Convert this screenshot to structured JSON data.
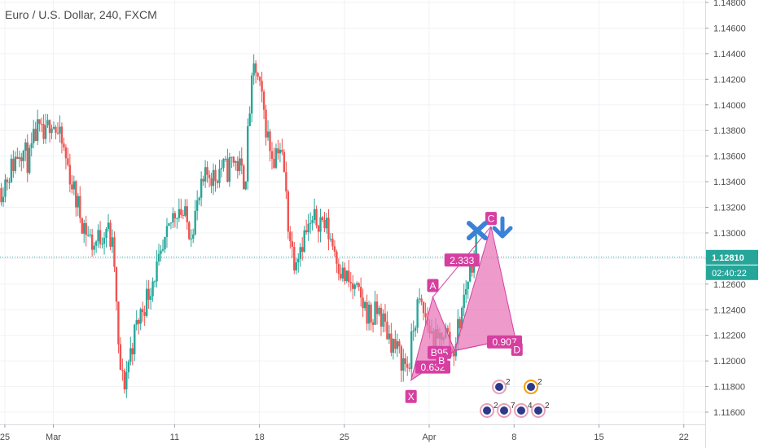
{
  "chart_data": {
    "type": "candlestick",
    "symbol_title": "Euro / U.S. Dollar, 240, FXCM",
    "ylim": [
      1.115,
      1.148
    ],
    "y_ticks": [
      "1.11600",
      "1.11800",
      "1.12000",
      "1.12200",
      "1.12400",
      "1.12600",
      "1.12800",
      "1.13000",
      "1.13200",
      "1.13400",
      "1.13600",
      "1.13800",
      "1.14000",
      "1.14200",
      "1.14400",
      "1.14600",
      "1.14800"
    ],
    "x_ticks": [
      {
        "label": "25",
        "day": -3
      },
      {
        "label": "Mar",
        "day": 1
      },
      {
        "label": "11",
        "day": 11
      },
      {
        "label": "18",
        "day": 18
      },
      {
        "label": "25",
        "day": 25
      },
      {
        "label": "Apr",
        "day": 32
      },
      {
        "label": "8",
        "day": 39
      },
      {
        "label": "15",
        "day": 46
      },
      {
        "label": "22",
        "day": 53
      }
    ],
    "x_day_range": [
      -3.4,
      59.2
    ],
    "grid": true,
    "current_price": {
      "label": "1.12810",
      "value": 1.1281,
      "color": "#26a69a"
    },
    "countdown": "02:40:22",
    "close_path": [
      [
        -3.3,
        1.1335
      ],
      [
        -2.5,
        1.135
      ],
      [
        -1.7,
        1.1368
      ],
      [
        -1.0,
        1.1355
      ],
      [
        -0.4,
        1.138
      ],
      [
        0.3,
        1.1372
      ],
      [
        0.8,
        1.1392
      ],
      [
        1.3,
        1.1378
      ],
      [
        1.8,
        1.1366
      ],
      [
        2.3,
        1.1348
      ],
      [
        2.8,
        1.1328
      ],
      [
        3.3,
        1.1312
      ],
      [
        3.8,
        1.13
      ],
      [
        4.3,
        1.129
      ],
      [
        4.9,
        1.1298
      ],
      [
        5.4,
        1.1306
      ],
      [
        6.0,
        1.1282
      ],
      [
        6.4,
        1.12
      ],
      [
        6.8,
        1.118
      ],
      [
        7.3,
        1.1205
      ],
      [
        7.8,
        1.1225
      ],
      [
        8.3,
        1.124
      ],
      [
        8.8,
        1.1252
      ],
      [
        9.3,
        1.1268
      ],
      [
        9.8,
        1.1275
      ],
      [
        10.3,
        1.1292
      ],
      [
        10.8,
        1.1312
      ],
      [
        11.3,
        1.1322
      ],
      [
        11.8,
        1.1312
      ],
      [
        12.3,
        1.1302
      ],
      [
        12.8,
        1.1318
      ],
      [
        13.3,
        1.1335
      ],
      [
        13.8,
        1.1348
      ],
      [
        14.3,
        1.1343
      ],
      [
        14.8,
        1.1352
      ],
      [
        15.3,
        1.1348
      ],
      [
        15.8,
        1.1358
      ],
      [
        16.3,
        1.1352
      ],
      [
        16.8,
        1.134
      ],
      [
        17.2,
        1.1398
      ],
      [
        17.6,
        1.1432
      ],
      [
        18.0,
        1.1412
      ],
      [
        18.4,
        1.1392
      ],
      [
        18.8,
        1.1368
      ],
      [
        19.2,
        1.136
      ],
      [
        19.6,
        1.1372
      ],
      [
        20.0,
        1.135
      ],
      [
        20.4,
        1.1305
      ],
      [
        20.8,
        1.128
      ],
      [
        21.3,
        1.129
      ],
      [
        21.8,
        1.13
      ],
      [
        22.3,
        1.1305
      ],
      [
        22.8,
        1.1312
      ],
      [
        23.3,
        1.1308
      ],
      [
        23.8,
        1.1298
      ],
      [
        24.3,
        1.1285
      ],
      [
        24.8,
        1.1268
      ],
      [
        25.3,
        1.1262
      ],
      [
        25.8,
        1.1255
      ],
      [
        26.3,
        1.1248
      ],
      [
        26.8,
        1.124
      ],
      [
        27.3,
        1.1232
      ],
      [
        27.8,
        1.124
      ],
      [
        28.3,
        1.1228
      ],
      [
        28.8,
        1.1218
      ],
      [
        29.3,
        1.1208
      ],
      [
        29.8,
        1.12
      ],
      [
        30.3,
        1.1195
      ],
      [
        30.7,
        1.1225
      ],
      [
        31.1,
        1.1245
      ],
      [
        31.5,
        1.1238
      ],
      [
        31.9,
        1.1228
      ],
      [
        32.3,
        1.1218
      ],
      [
        32.7,
        1.1212
      ],
      [
        33.1,
        1.1225
      ],
      [
        33.5,
        1.122
      ],
      [
        33.9,
        1.1205
      ],
      [
        34.3,
        1.1222
      ],
      [
        34.7,
        1.124
      ],
      [
        35.1,
        1.1262
      ],
      [
        35.5,
        1.1278
      ],
      [
        35.9,
        1.1292
      ]
    ],
    "pattern": {
      "points": [
        {
          "name": "X",
          "day": 30.5,
          "price": 1.1185
        },
        {
          "name": "A",
          "day": 32.3,
          "price": 1.125
        },
        {
          "name": "B",
          "day": 34.1,
          "price": 1.1208
        },
        {
          "name": "C",
          "day": 37.1,
          "price": 1.1305
        },
        {
          "name": "D",
          "day": 39.1,
          "price": 1.1218
        }
      ],
      "ratios": [
        "0.632",
        "2.333",
        "B95",
        "0.907"
      ],
      "fill": "#e879b9",
      "stroke": "#d63fa0"
    },
    "events": [
      {
        "row": 0,
        "counts": [
          "2",
          "2"
        ]
      },
      {
        "row": 1,
        "counts": [
          "2",
          "7",
          "4",
          "2"
        ]
      }
    ]
  }
}
